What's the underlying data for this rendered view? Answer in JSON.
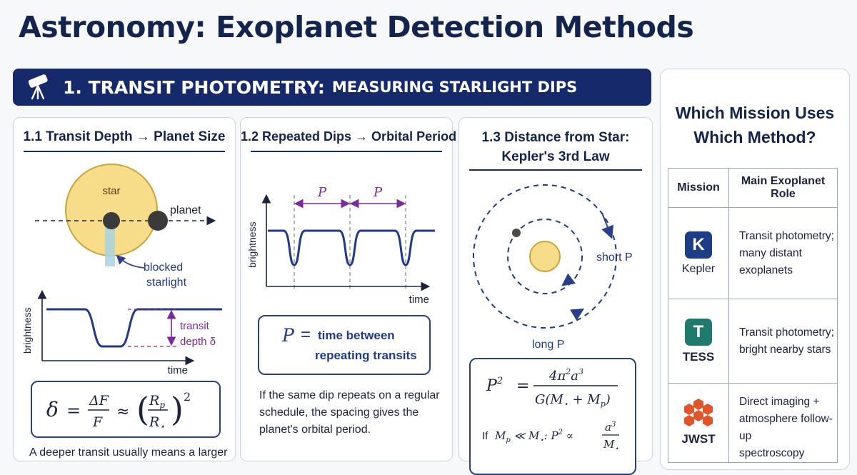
{
  "title": "Astronomy: Exoplanet Detection Methods",
  "banner": {
    "number_label": "1. TRANSIT PHOTOMETRY:",
    "subtitle": "MEASURING STARLIGHT DIPS"
  },
  "card1": {
    "title": "1.1 Transit Depth → Planet Size",
    "star_label": "star",
    "planet_label": "planet",
    "blocked_label_1": "blocked",
    "blocked_label_2": "starlight",
    "y_label": "brightness",
    "x_label": "time",
    "transit_label_1": "transit",
    "transit_label_2": "depth δ",
    "formula": "δ = ΔF/F ≈ (Rp/R⋆)²",
    "caption": "A deeper transit usually means a larger"
  },
  "card2": {
    "title": "1.2 Repeated Dips → Orbital Period",
    "period_label": "P",
    "y_label": "brightness",
    "x_label": "time",
    "box_symbol": "P",
    "box_eq": "=",
    "box_line1": "time between",
    "box_line2": "repeating transits",
    "para": [
      "If the same dip repeats on a regular",
      "schedule, the spacing gives the",
      "planet's orbital period."
    ]
  },
  "card3": {
    "title_line1": "1.3 Distance from Star:",
    "title_line2": "Kepler's 3rd Law",
    "short_label": "short P",
    "long_label": "long P",
    "formula": "P² = 4π²a³ / G(M⋆ + Mp)",
    "approx_prefix": "If",
    "approx_formula": "Mp ≪ M⋆: P² ∝ a³/M⋆"
  },
  "side": {
    "title_line1": "Which Mission Uses",
    "title_line2": "Which Method?",
    "col_mission": "Mission",
    "col_role": "Main Exoplanet Role",
    "rows": [
      {
        "name": "Kepler",
        "logo_letter": "K",
        "logo_color": "#1d3d87",
        "role": [
          "Transit photometry;",
          "many distant",
          "exoplanets"
        ]
      },
      {
        "name": "TESS",
        "logo_letter": "T",
        "logo_color": "#1f7a6e",
        "role": [
          "Transit photometry;",
          "bright nearby stars"
        ]
      },
      {
        "name": "JWST",
        "logo_letter": "",
        "logo_color": "#e0552a",
        "role": [
          "Direct imaging +",
          "atmosphere follow-up",
          "spectroscopy"
        ]
      }
    ]
  },
  "colors": {
    "navy": "#15296b",
    "purple": "#7a2a9c",
    "star_fill": "#f7dc8a",
    "blocked": "#a9d3e0"
  }
}
